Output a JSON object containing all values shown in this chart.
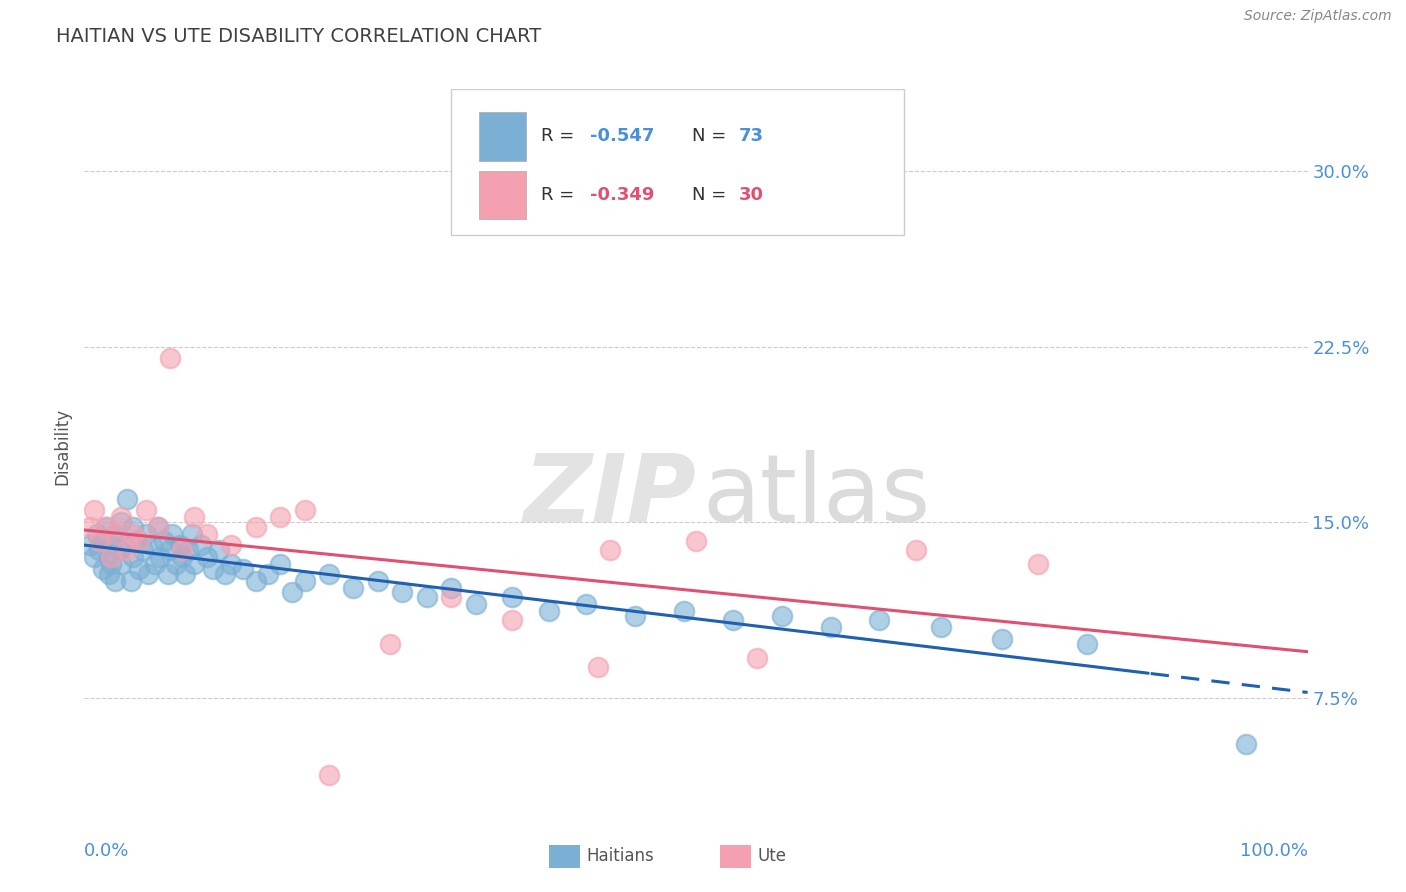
{
  "title": "HAITIAN VS UTE DISABILITY CORRELATION CHART",
  "source": "Source: ZipAtlas.com",
  "ylabel": "Disability",
  "y_ticks": [
    0.075,
    0.15,
    0.225,
    0.3
  ],
  "y_tick_labels": [
    "7.5%",
    "15.0%",
    "22.5%",
    "30.0%"
  ],
  "xlim": [
    0.0,
    1.0
  ],
  "ylim": [
    0.03,
    0.335
  ],
  "color_blue": "#7bafd4",
  "color_pink": "#f4a0b0",
  "line_blue": "#2060b0",
  "line_pink": "#e05070",
  "axis_label_color": "#4a90d9",
  "title_color": "#404040",
  "haitians_x": [
    0.005,
    0.008,
    0.01,
    0.012,
    0.015,
    0.015,
    0.018,
    0.02,
    0.02,
    0.022,
    0.022,
    0.025,
    0.025,
    0.028,
    0.03,
    0.03,
    0.032,
    0.035,
    0.038,
    0.04,
    0.04,
    0.042,
    0.045,
    0.048,
    0.05,
    0.052,
    0.055,
    0.058,
    0.06,
    0.062,
    0.065,
    0.068,
    0.07,
    0.072,
    0.075,
    0.078,
    0.08,
    0.082,
    0.085,
    0.088,
    0.09,
    0.095,
    0.1,
    0.105,
    0.11,
    0.115,
    0.12,
    0.13,
    0.14,
    0.15,
    0.16,
    0.17,
    0.18,
    0.2,
    0.22,
    0.24,
    0.26,
    0.28,
    0.3,
    0.32,
    0.35,
    0.38,
    0.41,
    0.45,
    0.49,
    0.53,
    0.57,
    0.61,
    0.65,
    0.7,
    0.75,
    0.82,
    0.95
  ],
  "haitians_y": [
    0.14,
    0.135,
    0.145,
    0.138,
    0.142,
    0.13,
    0.148,
    0.135,
    0.128,
    0.14,
    0.132,
    0.145,
    0.125,
    0.138,
    0.15,
    0.132,
    0.14,
    0.16,
    0.125,
    0.148,
    0.135,
    0.142,
    0.13,
    0.138,
    0.145,
    0.128,
    0.14,
    0.132,
    0.148,
    0.135,
    0.142,
    0.128,
    0.138,
    0.145,
    0.132,
    0.14,
    0.135,
    0.128,
    0.138,
    0.145,
    0.132,
    0.14,
    0.135,
    0.13,
    0.138,
    0.128,
    0.132,
    0.13,
    0.125,
    0.128,
    0.132,
    0.12,
    0.125,
    0.128,
    0.122,
    0.125,
    0.12,
    0.118,
    0.122,
    0.115,
    0.118,
    0.112,
    0.115,
    0.11,
    0.112,
    0.108,
    0.11,
    0.105,
    0.108,
    0.105,
    0.1,
    0.098,
    0.055
  ],
  "ute_x": [
    0.005,
    0.008,
    0.012,
    0.018,
    0.022,
    0.025,
    0.03,
    0.035,
    0.04,
    0.045,
    0.05,
    0.06,
    0.07,
    0.08,
    0.09,
    0.1,
    0.12,
    0.14,
    0.16,
    0.18,
    0.2,
    0.25,
    0.3,
    0.35,
    0.42,
    0.43,
    0.5,
    0.55,
    0.68,
    0.78
  ],
  "ute_y": [
    0.148,
    0.155,
    0.142,
    0.148,
    0.135,
    0.145,
    0.152,
    0.138,
    0.145,
    0.142,
    0.155,
    0.148,
    0.22,
    0.138,
    0.152,
    0.145,
    0.14,
    0.148,
    0.152,
    0.155,
    0.042,
    0.098,
    0.118,
    0.108,
    0.088,
    0.138,
    0.142,
    0.092,
    0.138,
    0.132
  ],
  "legend_r1_label": "R = ",
  "legend_r1_val": "-0.547",
  "legend_n1_label": "N = ",
  "legend_n1_val": "73",
  "legend_r2_label": "R = ",
  "legend_r2_val": "-0.349",
  "legend_n2_label": "N = ",
  "legend_n2_val": "30",
  "watermark_zip": "ZIP",
  "watermark_atlas": "atlas"
}
